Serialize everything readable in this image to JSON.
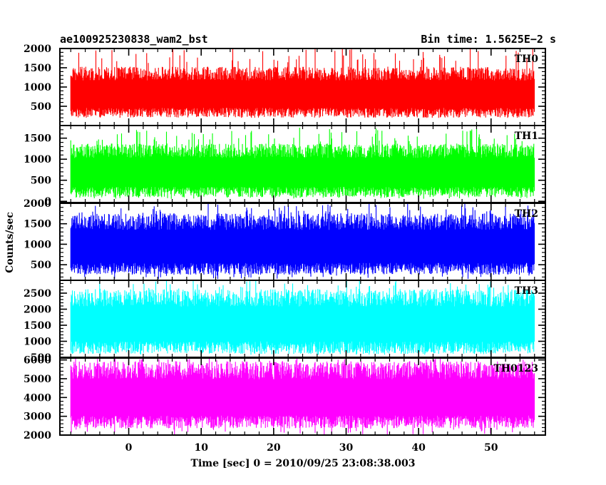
{
  "chart_data": {
    "type": "line",
    "title": "ae100925230838_wam2_bst",
    "subtitle": "Bin time: 1.5625E−2 s",
    "xlabel": "Time [sec] 0 = 2010/09/25 23:08:38.003",
    "ylabel": "Counts/sec",
    "x_range": [
      -8,
      56
    ],
    "xlim": [
      -9.5,
      57.5
    ],
    "x_ticks": [
      0,
      10,
      20,
      30,
      40,
      50
    ],
    "x_tick_labels": [
      "0",
      "10",
      "20",
      "30",
      "40",
      "50"
    ],
    "grid": false,
    "panels": [
      {
        "name": "TH0",
        "color": "#ff0000",
        "ylim": [
          0,
          2000
        ],
        "y_ticks": [
          500,
          1000,
          1500,
          2000
        ],
        "y_tick_labels": [
          "500",
          "1000",
          "1500",
          "2000"
        ],
        "baseline": 800,
        "upper_typical": 1350,
        "lower_typical": 330,
        "peak_max": 2000,
        "trough_min": 190
      },
      {
        "name": "TH1",
        "color": "#00ff00",
        "ylim": [
          -30,
          1800
        ],
        "y_ticks": [
          0,
          500,
          1000,
          1500
        ],
        "y_tick_labels": [
          "0",
          "500",
          "1000",
          "1500"
        ],
        "baseline": 650,
        "upper_typical": 1200,
        "lower_typical": 220,
        "peak_max": 1750,
        "trough_min": 60
      },
      {
        "name": "TH2",
        "color": "#0000ff",
        "ylim": [
          120,
          2000
        ],
        "y_ticks": [
          500,
          1000,
          1500,
          2000
        ],
        "y_tick_labels": [
          "500",
          "1000",
          "1500",
          "2000"
        ],
        "baseline": 900,
        "upper_typical": 1550,
        "lower_typical": 400,
        "peak_max": 2000,
        "trough_min": 150
      },
      {
        "name": "TH3",
        "color": "#00ffff",
        "ylim": [
          500,
          2900
        ],
        "y_ticks": [
          500,
          1000,
          1500,
          2000,
          2500
        ],
        "y_tick_labels": [
          "500",
          "1000",
          "1500",
          "2000",
          "2500"
        ],
        "baseline": 1500,
        "upper_typical": 2350,
        "lower_typical": 800,
        "peak_max": 2900,
        "trough_min": 580
      },
      {
        "name": "TH0123",
        "color": "#ff00ff",
        "ylim": [
          2000,
          6100
        ],
        "y_ticks": [
          2000,
          3000,
          4000,
          5000,
          6000
        ],
        "y_tick_labels": [
          "2000",
          "3000",
          "4000",
          "5000",
          "6000"
        ],
        "baseline": 3950,
        "upper_typical": 5450,
        "lower_typical": 2700,
        "peak_max": 6100,
        "trough_min": 2000
      }
    ]
  }
}
